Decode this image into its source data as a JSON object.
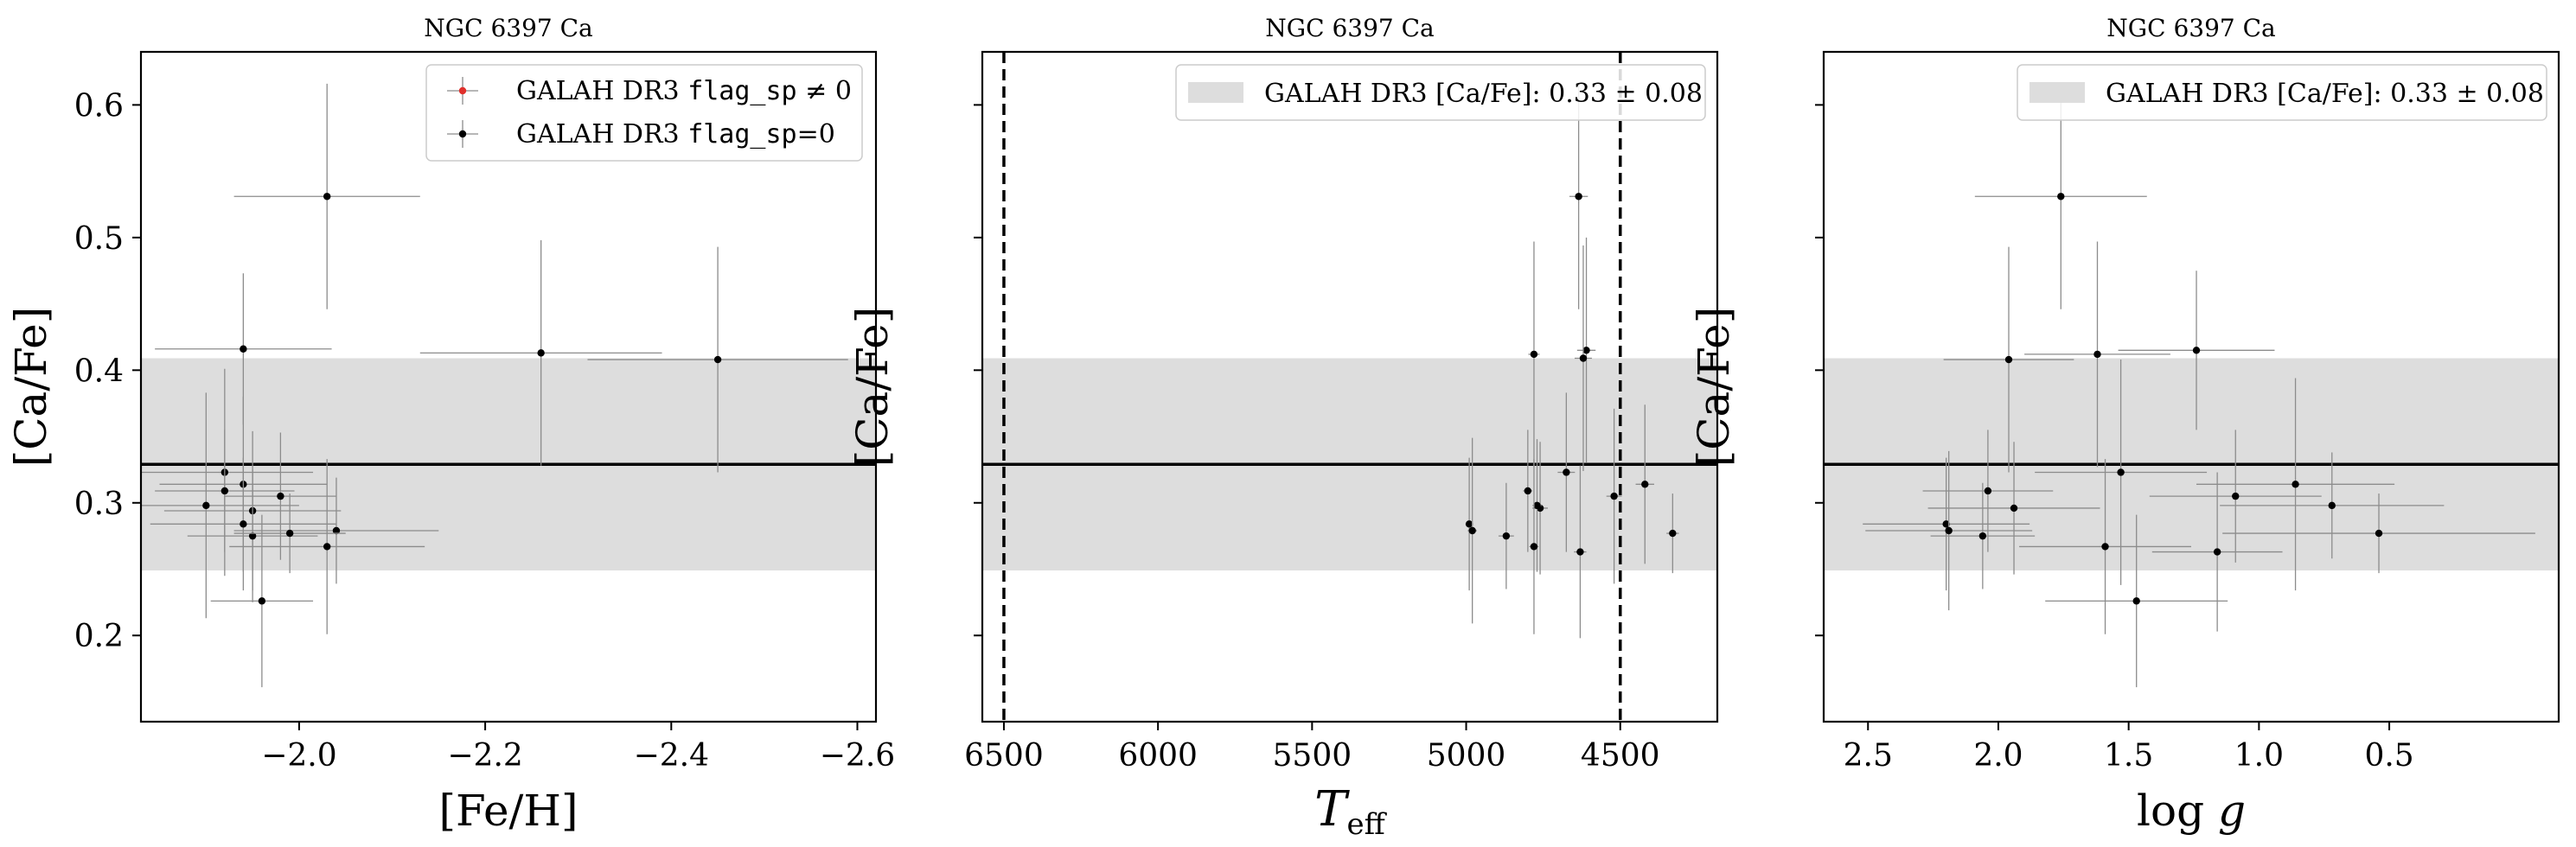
{
  "colors": {
    "band": "#dddddd",
    "median_line": "#000000",
    "errorbar": "#8c8c8c",
    "point": "#000000",
    "flagged": "#e0302c",
    "vline": "#000000"
  },
  "legend": {
    "flagged_prefix": "GALAH DR3 ",
    "flagged_code": "flag_sp",
    "flagged_suffix": " ≠ 0",
    "good_prefix": "GALAH DR3 ",
    "good_code": "flag_sp",
    "good_suffix": "=0",
    "band_label": "GALAH DR3 [Ca/Fe]: 0.33 ± 0.08"
  },
  "chart_data": [
    {
      "type": "scatter",
      "title": "NGC 6397 Ca",
      "xlabel": "[Fe/H]",
      "ylabel": "[Ca/Fe]",
      "xlim": [
        -1.83,
        -2.62
      ],
      "ylim": [
        0.135,
        0.64
      ],
      "xticks": [
        -2.0,
        -2.2,
        -2.4,
        -2.6
      ],
      "xtick_labels": [
        "−2.0",
        "−2.2",
        "−2.4",
        "−2.6"
      ],
      "yticks": [
        0.2,
        0.3,
        0.4,
        0.5,
        0.6
      ],
      "ytick_labels": [
        "0.2",
        "0.3",
        "0.4",
        "0.5",
        "0.6"
      ],
      "band": {
        "center": 0.329,
        "err": 0.08
      },
      "vlines": [],
      "legend": "top-right",
      "legend_kind": "points",
      "x": [
        -2.03,
        -1.94,
        -2.26,
        -2.45,
        -1.92,
        -1.94,
        -1.92,
        -1.98,
        -1.9,
        -1.95,
        -1.94,
        -2.04,
        -1.95,
        -1.99,
        -2.03,
        -1.96
      ],
      "xerr": [
        0.1,
        0.095,
        0.13,
        0.14,
        0.095,
        0.09,
        0.075,
        0.06,
        0.1,
        0.095,
        0.1,
        0.11,
        0.07,
        0.06,
        0.105,
        0.055
      ],
      "y": [
        0.531,
        0.416,
        0.413,
        0.408,
        0.323,
        0.314,
        0.309,
        0.305,
        0.298,
        0.294,
        0.284,
        0.279,
        0.275,
        0.277,
        0.267,
        0.226
      ],
      "yerr": [
        0.085,
        0.057,
        0.085,
        0.085,
        0.078,
        0.066,
        0.046,
        0.048,
        0.085,
        0.06,
        0.05,
        0.04,
        0.05,
        0.03,
        0.066,
        0.065
      ]
    },
    {
      "type": "scatter",
      "title": "NGC 6397 Ca",
      "xlabel": "T_eff",
      "ylabel": "[Ca/Fe]",
      "xlim": [
        6570,
        4185
      ],
      "ylim": [
        0.135,
        0.64
      ],
      "xticks": [
        6500,
        6000,
        5500,
        5000,
        4500
      ],
      "xtick_labels": [
        "6500",
        "6000",
        "5500",
        "5000",
        "4500"
      ],
      "yticks": [
        0.2,
        0.3,
        0.4,
        0.5,
        0.6
      ],
      "ytick_labels": [
        "",
        "",
        "",
        "",
        ""
      ],
      "band": {
        "center": 0.329,
        "err": 0.08
      },
      "vlines": [
        6500,
        4500
      ],
      "legend": "top-right",
      "legend_kind": "band",
      "x": [
        4635,
        4780,
        4610,
        4620,
        4675,
        4520,
        4420,
        4800,
        4760,
        4770,
        4990,
        4980,
        4870,
        4330,
        4780,
        4630
      ],
      "xerr": [
        30,
        18,
        30,
        28,
        28,
        25,
        30,
        15,
        25,
        15,
        12,
        15,
        25,
        20,
        15,
        20
      ],
      "y": [
        0.531,
        0.412,
        0.415,
        0.409,
        0.323,
        0.305,
        0.314,
        0.309,
        0.296,
        0.298,
        0.284,
        0.279,
        0.275,
        0.277,
        0.267,
        0.263
      ],
      "yerr": [
        0.085,
        0.085,
        0.085,
        0.085,
        0.06,
        0.066,
        0.06,
        0.046,
        0.05,
        0.05,
        0.05,
        0.07,
        0.04,
        0.03,
        0.066,
        0.065
      ]
    },
    {
      "type": "scatter",
      "title": "NGC 6397 Ca",
      "xlabel": "log g",
      "ylabel": "[Ca/Fe]",
      "xlim": [
        2.67,
        -0.15
      ],
      "ylim": [
        0.135,
        0.64
      ],
      "xticks": [
        2.5,
        2.0,
        1.5,
        1.0,
        0.5
      ],
      "xtick_labels": [
        "2.5",
        "2.0",
        "1.5",
        "1.0",
        "0.5"
      ],
      "yticks": [
        0.2,
        0.3,
        0.4,
        0.5,
        0.6
      ],
      "ytick_labels": [
        "",
        "",
        "",
        "",
        ""
      ],
      "band": {
        "center": 0.329,
        "err": 0.08
      },
      "vlines": [],
      "legend": "top-right",
      "legend_kind": "band",
      "x": [
        1.76,
        1.96,
        1.62,
        1.24,
        1.53,
        1.09,
        2.04,
        0.86,
        1.94,
        0.72,
        2.2,
        2.19,
        2.06,
        0.54,
        1.59,
        1.47,
        1.16
      ],
      "xerr": [
        0.33,
        0.25,
        0.28,
        0.3,
        0.33,
        0.33,
        0.25,
        0.38,
        0.33,
        0.43,
        0.32,
        0.32,
        0.2,
        0.6,
        0.33,
        0.35,
        0.25
      ],
      "y": [
        0.531,
        0.408,
        0.412,
        0.415,
        0.323,
        0.305,
        0.309,
        0.314,
        0.296,
        0.298,
        0.284,
        0.279,
        0.275,
        0.277,
        0.267,
        0.226,
        0.263
      ],
      "yerr": [
        0.085,
        0.085,
        0.085,
        0.06,
        0.085,
        0.05,
        0.046,
        0.08,
        0.05,
        0.04,
        0.05,
        0.06,
        0.04,
        0.03,
        0.066,
        0.065,
        0.06
      ]
    }
  ]
}
